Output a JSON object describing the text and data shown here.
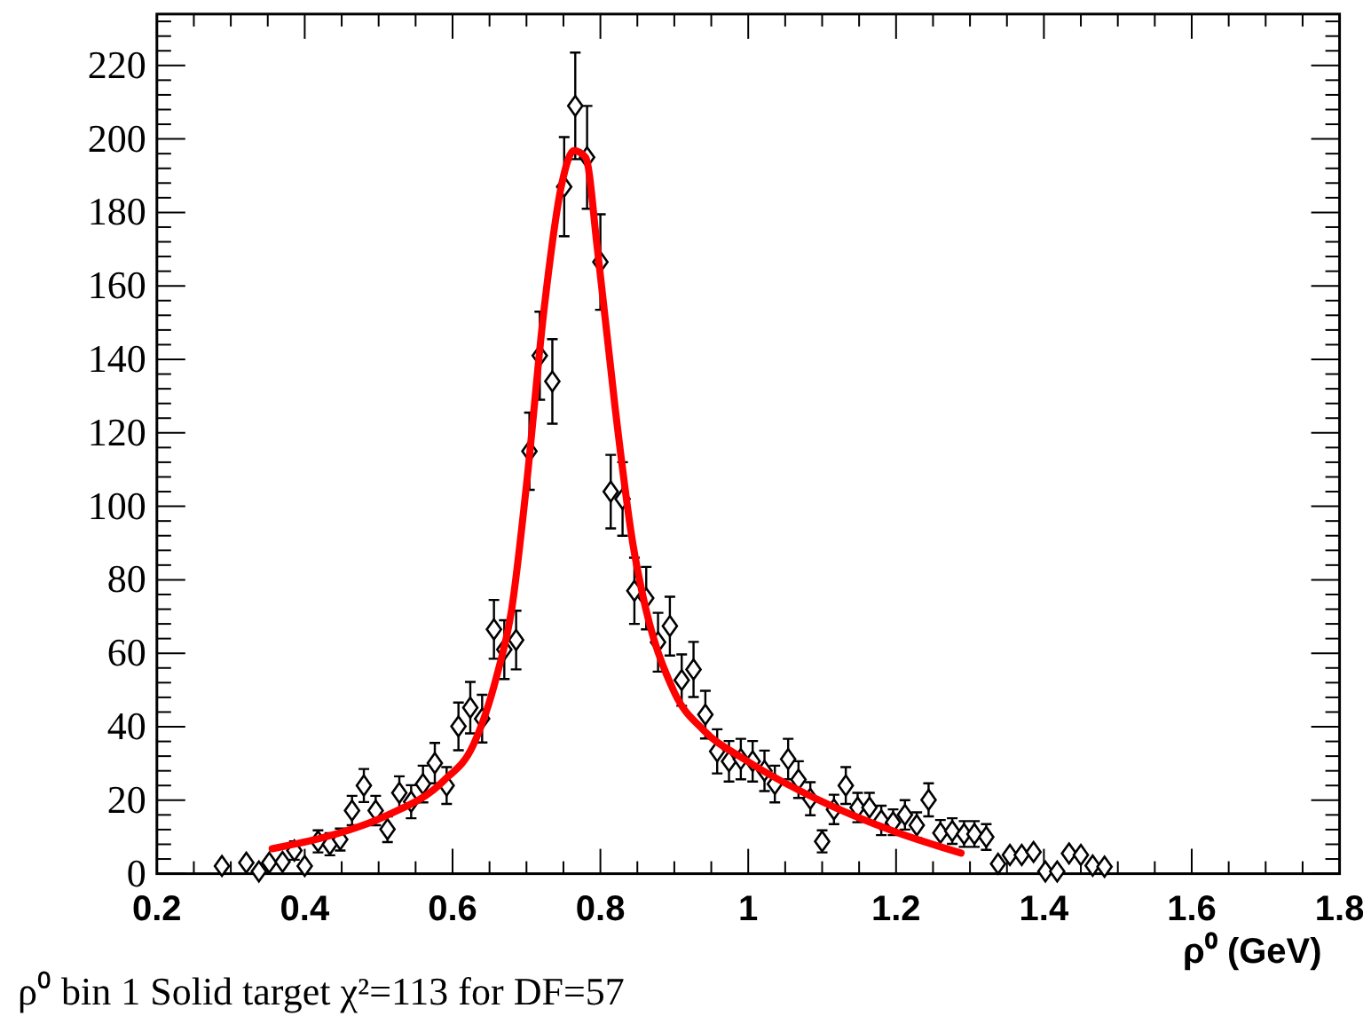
{
  "chart_data": {
    "type": "scatter",
    "xlabel": "ρ⁰ (GeV)",
    "annotations": [
      "ρ⁰ bin 1 Solid target χ²=113 for DF=57"
    ],
    "xlim": [
      0.2,
      1.8
    ],
    "ylim": [
      0,
      234
    ],
    "xticks": [
      0.2,
      {
        "value": 0.25,
        "label": null
      },
      {
        "value": 0.3,
        "label": null
      },
      {
        "value": 0.35,
        "label": null
      },
      0.4,
      {
        "value": 0.45,
        "label": null
      },
      {
        "value": 0.5,
        "label": null
      },
      {
        "value": 0.55,
        "label": null
      },
      0.6,
      {
        "value": 0.65,
        "label": null
      },
      {
        "value": 0.7,
        "label": null
      },
      {
        "value": 0.75,
        "label": null
      },
      0.8,
      {
        "value": 0.85,
        "label": null
      },
      {
        "value": 0.9,
        "label": null
      },
      {
        "value": 0.95,
        "label": null
      },
      1,
      {
        "value": 1.05,
        "label": null
      },
      {
        "value": 1.1,
        "label": null
      },
      {
        "value": 1.15,
        "label": null
      },
      1.2,
      {
        "value": 1.25,
        "label": null
      },
      {
        "value": 1.3,
        "label": null
      },
      {
        "value": 1.35,
        "label": null
      },
      1.4,
      {
        "value": 1.45,
        "label": null
      },
      {
        "value": 1.5,
        "label": null
      },
      {
        "value": 1.55,
        "label": null
      },
      1.6,
      {
        "value": 1.65,
        "label": null
      },
      {
        "value": 1.7,
        "label": null
      },
      {
        "value": 1.75,
        "label": null
      },
      1.8
    ],
    "yticks": [
      0,
      {
        "value": 4,
        "label": null
      },
      {
        "value": 8,
        "label": null
      },
      {
        "value": 12,
        "label": null
      },
      {
        "value": 16,
        "label": null
      },
      20,
      {
        "value": 24,
        "label": null
      },
      {
        "value": 28,
        "label": null
      },
      {
        "value": 32,
        "label": null
      },
      {
        "value": 36,
        "label": null
      },
      40,
      {
        "value": 44,
        "label": null
      },
      {
        "value": 48,
        "label": null
      },
      {
        "value": 52,
        "label": null
      },
      {
        "value": 56,
        "label": null
      },
      60,
      {
        "value": 64,
        "label": null
      },
      {
        "value": 68,
        "label": null
      },
      {
        "value": 72,
        "label": null
      },
      {
        "value": 76,
        "label": null
      },
      80,
      {
        "value": 84,
        "label": null
      },
      {
        "value": 88,
        "label": null
      },
      {
        "value": 92,
        "label": null
      },
      {
        "value": 96,
        "label": null
      },
      100,
      {
        "value": 104,
        "label": null
      },
      {
        "value": 108,
        "label": null
      },
      {
        "value": 112,
        "label": null
      },
      {
        "value": 116,
        "label": null
      },
      120,
      {
        "value": 124,
        "label": null
      },
      {
        "value": 128,
        "label": null
      },
      {
        "value": 132,
        "label": null
      },
      {
        "value": 136,
        "label": null
      },
      140,
      {
        "value": 144,
        "label": null
      },
      {
        "value": 148,
        "label": null
      },
      {
        "value": 152,
        "label": null
      },
      {
        "value": 156,
        "label": null
      },
      160,
      {
        "value": 164,
        "label": null
      },
      {
        "value": 168,
        "label": null
      },
      {
        "value": 172,
        "label": null
      },
      {
        "value": 176,
        "label": null
      },
      180,
      {
        "value": 184,
        "label": null
      },
      {
        "value": 188,
        "label": null
      },
      {
        "value": 192,
        "label": null
      },
      {
        "value": 196,
        "label": null
      },
      200,
      {
        "value": 204,
        "label": null
      },
      {
        "value": 208,
        "label": null
      },
      {
        "value": 212,
        "label": null
      },
      {
        "value": 216,
        "label": null
      },
      220,
      {
        "value": 224,
        "label": null
      },
      {
        "value": 228,
        "label": null
      },
      {
        "value": 232,
        "label": null
      }
    ],
    "series": [
      {
        "color": "#000000",
        "marker": "diamond",
        "x": [
          0.288,
          0.321,
          0.338,
          0.352,
          0.37,
          0.386,
          0.4,
          0.418,
          0.434,
          0.448,
          0.464,
          0.48,
          0.496,
          0.512,
          0.528,
          0.544,
          0.56,
          0.576,
          0.592,
          0.608,
          0.624,
          0.64,
          0.656,
          0.67,
          0.686,
          0.704,
          0.718,
          0.735,
          0.751,
          0.766,
          0.782,
          0.8,
          0.814,
          0.83,
          0.846,
          0.862,
          0.878,
          0.894,
          0.91,
          0.926,
          0.942,
          0.958,
          0.974,
          0.99,
          1.006,
          1.022,
          1.036,
          1.054,
          1.068,
          1.084,
          1.1,
          1.116,
          1.132,
          1.148,
          1.164,
          1.18,
          1.196,
          1.212,
          1.228,
          1.244,
          1.26,
          1.276,
          1.292,
          1.306,
          1.322,
          1.338,
          1.354,
          1.37,
          1.386,
          1.402,
          1.418,
          1.434,
          1.45,
          1.466,
          1.482
        ],
        "values": [
          2.1,
          3.0,
          0.6,
          3.0,
          3.2,
          6.3,
          2.1,
          8.8,
          8,
          9.3,
          17.2,
          24,
          17.2,
          12.1,
          22,
          19.6,
          24.4,
          30.1,
          24,
          40.1,
          45.2,
          42.2,
          66.5,
          61,
          63.6,
          115,
          141,
          134,
          187,
          209,
          195,
          166.5,
          104,
          102,
          77,
          75,
          63,
          67.4,
          52.7,
          55.6,
          43.3,
          33.3,
          30.6,
          31.2,
          30.6,
          28,
          24.4,
          31.2,
          25.6,
          20.4,
          8.8,
          17.5,
          24,
          18,
          18,
          14.5,
          14,
          16,
          13.2,
          20.1,
          11.1,
          11.6,
          10.8,
          10.8,
          10,
          2.7,
          5.1,
          5.1,
          5.9,
          0.6,
          0.6,
          5.5,
          5.1,
          2.2,
          1.9
        ],
        "errors": [
          null,
          null,
          null,
          null,
          null,
          2.5,
          null,
          3,
          3,
          3,
          4,
          4.5,
          4,
          3.5,
          4.5,
          4.5,
          5,
          5.5,
          5,
          6.5,
          7,
          6.5,
          8,
          8,
          8,
          10.5,
          12,
          11.5,
          13.5,
          14.5,
          14,
          13,
          10,
          10,
          9,
          8.5,
          8,
          8,
          7,
          7.5,
          6.5,
          6,
          5.5,
          5.5,
          5.5,
          5.5,
          5,
          5.5,
          5,
          4.5,
          3,
          4,
          5,
          4,
          4,
          4,
          3.5,
          4,
          3.5,
          4.5,
          3.5,
          3.5,
          3.5,
          3.5,
          3.5,
          null,
          null,
          null,
          null,
          null,
          null,
          null,
          null,
          null,
          null
        ]
      },
      {
        "type": "line",
        "color": "#ff0000",
        "x": [
          0.356,
          0.428,
          0.508,
          0.588,
          0.628,
          0.66,
          0.68,
          0.7,
          0.724,
          0.748,
          0.764,
          0.78,
          0.796,
          0.82,
          0.844,
          0.856,
          0.9,
          0.94,
          0.996,
          1.1,
          1.196,
          1.288
        ],
        "values": [
          6.8,
          10,
          15.6,
          25.3,
          35,
          54,
          72,
          105.8,
          154,
          188,
          196.8,
          195,
          170,
          126.7,
          89.7,
          77,
          49.4,
          39,
          31,
          19.6,
          11.6,
          5.6
        ]
      }
    ]
  }
}
